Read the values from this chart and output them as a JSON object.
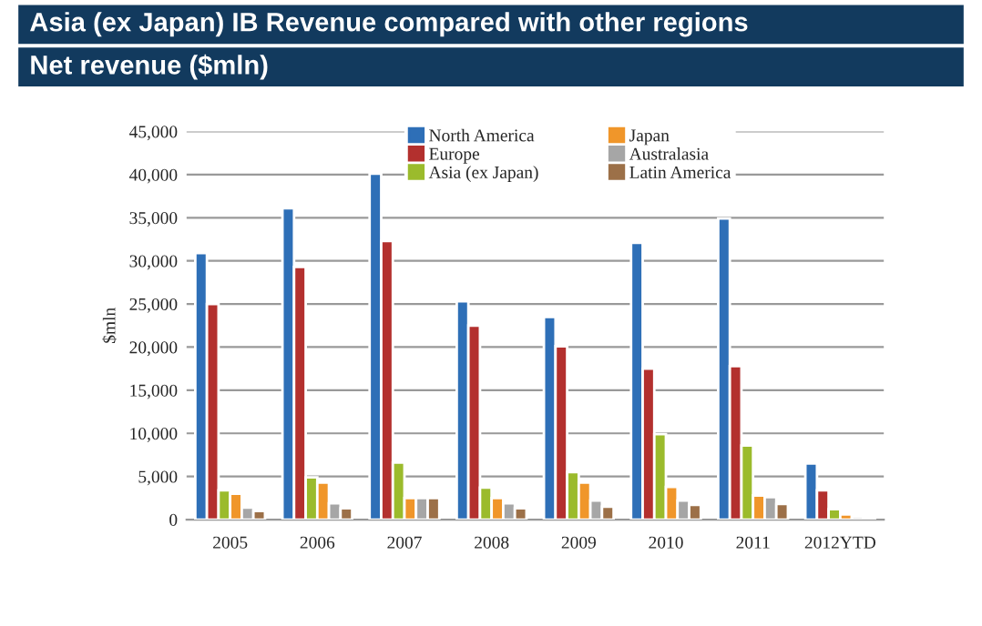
{
  "chart_data": {
    "type": "bar",
    "title": "Asia (ex Japan) IB Revenue compared with other regions",
    "subtitle": "Net revenue ($mln)",
    "ylabel": "$mln",
    "categories": [
      "2005",
      "2006",
      "2007",
      "2008",
      "2009",
      "2010",
      "2011",
      "2012YTD"
    ],
    "series": [
      {
        "name": "North America",
        "color": "#2e6fb7",
        "values": [
          30900,
          36100,
          40100,
          25300,
          23500,
          32100,
          34900,
          6500
        ]
      },
      {
        "name": "Europe",
        "color": "#b3302e",
        "values": [
          25000,
          29300,
          32300,
          22500,
          20100,
          17500,
          17800,
          3400
        ]
      },
      {
        "name": "Asia (ex Japan)",
        "color": "#9bbb2c",
        "values": [
          3400,
          4900,
          6600,
          3700,
          5500,
          9900,
          8600,
          1200
        ]
      },
      {
        "name": "Japan",
        "color": "#f0962a",
        "values": [
          3000,
          4300,
          2500,
          2500,
          4300,
          3800,
          2800,
          600
        ]
      },
      {
        "name": "Australasia",
        "color": "#a6a6a6",
        "values": [
          1400,
          1900,
          2500,
          1900,
          2200,
          2200,
          2600,
          300
        ]
      },
      {
        "name": "Latin America",
        "color": "#9c7048",
        "values": [
          1000,
          1300,
          2500,
          1300,
          1500,
          1700,
          1800,
          200
        ]
      }
    ],
    "ylim": [
      0,
      45000
    ],
    "yticks": [
      {
        "value": 0,
        "label": "0"
      },
      {
        "value": 5000,
        "label": "5,000"
      },
      {
        "value": 10000,
        "label": "10,000"
      },
      {
        "value": 15000,
        "label": "15,000"
      },
      {
        "value": 20000,
        "label": "20,000"
      },
      {
        "value": 25000,
        "label": "25,000"
      },
      {
        "value": 30000,
        "label": "30,000"
      },
      {
        "value": 35000,
        "label": "35,000"
      },
      {
        "value": 40000,
        "label": "40,000"
      },
      {
        "value": 45000,
        "label": "45,000"
      }
    ],
    "grid": "y",
    "legend": "top"
  }
}
